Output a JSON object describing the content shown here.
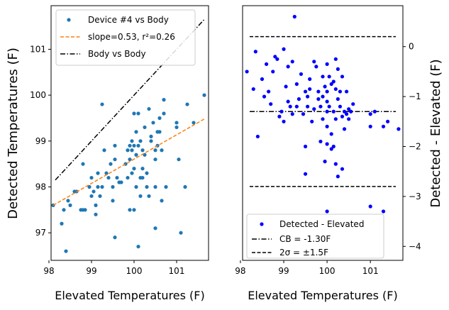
{
  "chart_data": [
    {
      "type": "scatter",
      "xlabel": "Elevated Temperatures (F)",
      "ylabel": "Detected Temperatures (F)",
      "xlim": [
        98.05,
        101.75
      ],
      "ylim": [
        96.4,
        101.95
      ],
      "xticks": [
        "98",
        "99",
        "100",
        "101"
      ],
      "yticks": [
        "97",
        "98",
        "99",
        "100",
        "101"
      ],
      "grid": false,
      "legend_loc": "upper-left",
      "colors": {
        "scatter": "#1f77b4",
        "fit": "#ff7f0e",
        "identity": "#000000"
      },
      "series": [
        {
          "name": "Device #4 vs Body",
          "kind": "points",
          "points": [
            [
              98.1,
              97.6
            ],
            [
              98.3,
              97.2
            ],
            [
              98.35,
              97.5
            ],
            [
              98.4,
              96.6
            ],
            [
              98.45,
              97.7
            ],
            [
              98.5,
              97.6
            ],
            [
              98.6,
              97.9
            ],
            [
              98.65,
              97.9
            ],
            [
              98.75,
              97.5
            ],
            [
              98.8,
              98.5
            ],
            [
              98.8,
              97.5
            ],
            [
              98.85,
              97.5
            ],
            [
              98.95,
              98.0
            ],
            [
              99.0,
              98.2
            ],
            [
              99.0,
              97.8
            ],
            [
              99.05,
              97.9
            ],
            [
              99.1,
              97.6
            ],
            [
              99.1,
              97.4
            ],
            [
              99.15,
              98.3
            ],
            [
              99.15,
              98.0
            ],
            [
              99.2,
              97.8
            ],
            [
              99.25,
              98.0
            ],
            [
              99.25,
              99.8
            ],
            [
              99.3,
              98.8
            ],
            [
              99.35,
              98.3
            ],
            [
              99.4,
              98.2
            ],
            [
              99.45,
              98.5
            ],
            [
              99.5,
              98.0
            ],
            [
              99.5,
              97.7
            ],
            [
              99.55,
              98.9
            ],
            [
              99.55,
              98.6
            ],
            [
              99.55,
              96.9
            ],
            [
              99.6,
              98.2
            ],
            [
              99.65,
              98.1
            ],
            [
              99.7,
              98.1
            ],
            [
              99.8,
              98.5
            ],
            [
              99.85,
              98.8
            ],
            [
              99.85,
              98.2
            ],
            [
              99.9,
              98.9
            ],
            [
              99.9,
              98.6
            ],
            [
              99.9,
              97.5
            ],
            [
              99.95,
              99.0
            ],
            [
              99.95,
              98.8
            ],
            [
              99.95,
              98.3
            ],
            [
              100.0,
              98.9
            ],
            [
              100.0,
              98.4
            ],
            [
              100.0,
              97.5
            ],
            [
              100.0,
              99.6
            ],
            [
              100.05,
              99.2
            ],
            [
              100.05,
              98.7
            ],
            [
              100.05,
              98.0
            ],
            [
              100.1,
              98.9
            ],
            [
              100.1,
              96.7
            ],
            [
              100.1,
              99.6
            ],
            [
              100.15,
              99.0
            ],
            [
              100.15,
              98.2
            ],
            [
              100.15,
              97.8
            ],
            [
              100.2,
              98.8
            ],
            [
              100.2,
              98.4
            ],
            [
              100.2,
              98.2
            ],
            [
              100.25,
              98.7
            ],
            [
              100.25,
              99.3
            ],
            [
              100.3,
              98.3
            ],
            [
              100.3,
              98.0
            ],
            [
              100.35,
              97.8
            ],
            [
              100.35,
              99.7
            ],
            [
              100.4,
              99.1
            ],
            [
              100.4,
              99.0
            ],
            [
              100.45,
              99.4
            ],
            [
              100.5,
              98.8
            ],
            [
              100.5,
              98.6
            ],
            [
              100.5,
              98.0
            ],
            [
              100.5,
              97.1
            ],
            [
              100.55,
              99.2
            ],
            [
              100.55,
              98.9
            ],
            [
              100.6,
              99.5
            ],
            [
              100.6,
              99.2
            ],
            [
              100.65,
              98.8
            ],
            [
              100.65,
              97.7
            ],
            [
              100.7,
              99.6
            ],
            [
              100.7,
              99.9
            ],
            [
              100.75,
              98.0
            ],
            [
              101.0,
              99.3
            ],
            [
              101.0,
              99.4
            ],
            [
              101.05,
              98.6
            ],
            [
              101.1,
              97.0
            ],
            [
              101.2,
              98.0
            ],
            [
              101.25,
              99.8
            ],
            [
              101.4,
              99.4
            ],
            [
              101.65,
              100.0
            ]
          ]
        },
        {
          "name": "slope=0.53, r²=0.26",
          "kind": "dashed-line",
          "points": [
            [
              98.1,
              97.6
            ],
            [
              101.65,
              99.48
            ]
          ]
        },
        {
          "name": "Body vs Body",
          "kind": "dashdot-line",
          "points": [
            [
              98.15,
              98.15
            ],
            [
              101.65,
              101.65
            ]
          ]
        }
      ]
    },
    {
      "type": "scatter",
      "xlabel": "Elevated Temperatures (F)",
      "ylabel": "Detected - Elevated (F)",
      "xlim": [
        98.05,
        101.75
      ],
      "ylim": [
        -4.28,
        0.82
      ],
      "xticks": [
        "98",
        "99",
        "100",
        "101"
      ],
      "yticks": [
        "0",
        "−1",
        "−2",
        "−3",
        "−4"
      ],
      "y_axis_side": "right",
      "grid": false,
      "legend_loc": "lower-left",
      "colors": {
        "points": "#0000ff",
        "lines": "#000000"
      },
      "series": [
        {
          "name": "Detected - Elevated",
          "kind": "points",
          "points": [
            [
              98.15,
              -0.5
            ],
            [
              98.3,
              -0.85
            ],
            [
              98.35,
              -0.1
            ],
            [
              98.4,
              -1.8
            ],
            [
              98.5,
              -0.65
            ],
            [
              98.55,
              -1.0
            ],
            [
              98.6,
              -0.35
            ],
            [
              98.65,
              -0.9
            ],
            [
              98.7,
              -1.15
            ],
            [
              98.75,
              -0.5
            ],
            [
              98.8,
              -0.2
            ],
            [
              98.85,
              -0.25
            ],
            [
              98.9,
              -1.4
            ],
            [
              98.95,
              -1.3
            ],
            [
              99.0,
              -0.05
            ],
            [
              99.0,
              -1.5
            ],
            [
              99.05,
              -0.8
            ],
            [
              99.1,
              -0.4
            ],
            [
              99.1,
              -1.1
            ],
            [
              99.15,
              -1.2
            ],
            [
              99.2,
              -0.3
            ],
            [
              99.2,
              -1.35
            ],
            [
              99.25,
              0.6
            ],
            [
              99.3,
              -0.75
            ],
            [
              99.3,
              -1.2
            ],
            [
              99.35,
              -1.05
            ],
            [
              99.4,
              -0.55
            ],
            [
              99.45,
              -1.35
            ],
            [
              99.5,
              -0.9
            ],
            [
              99.5,
              -2.0
            ],
            [
              99.5,
              -2.55
            ],
            [
              99.55,
              -1.0
            ],
            [
              99.55,
              -1.2
            ],
            [
              99.6,
              -0.85
            ],
            [
              99.6,
              -0.65
            ],
            [
              99.65,
              -1.5
            ],
            [
              99.7,
              -0.3
            ],
            [
              99.7,
              -1.25
            ],
            [
              99.75,
              -0.4
            ],
            [
              99.8,
              -1.05
            ],
            [
              99.8,
              -0.9
            ],
            [
              99.85,
              -1.2
            ],
            [
              99.85,
              -1.9
            ],
            [
              99.9,
              -0.6
            ],
            [
              99.9,
              -1.0
            ],
            [
              99.9,
              -1.45
            ],
            [
              99.95,
              -0.8
            ],
            [
              99.95,
              -2.3
            ],
            [
              100.0,
              -0.35
            ],
            [
              100.0,
              -0.9
            ],
            [
              100.0,
              -1.1
            ],
            [
              100.0,
              -1.3
            ],
            [
              100.0,
              -1.6
            ],
            [
              100.0,
              -1.95
            ],
            [
              100.05,
              -0.6
            ],
            [
              100.05,
              -1.2
            ],
            [
              100.1,
              -0.75
            ],
            [
              100.1,
              -1.75
            ],
            [
              100.1,
              -2.05
            ],
            [
              100.15,
              -0.7
            ],
            [
              100.15,
              -1.3
            ],
            [
              100.15,
              -2.0
            ],
            [
              100.2,
              -0.25
            ],
            [
              100.2,
              -0.85
            ],
            [
              100.2,
              -1.45
            ],
            [
              100.2,
              -2.35
            ],
            [
              100.25,
              -0.45
            ],
            [
              100.25,
              -1.05
            ],
            [
              100.25,
              -2.6
            ],
            [
              100.3,
              -0.9
            ],
            [
              100.3,
              -1.2
            ],
            [
              100.35,
              -0.6
            ],
            [
              100.35,
              -1.4
            ],
            [
              100.35,
              -2.45
            ],
            [
              100.4,
              -1.3
            ],
            [
              100.4,
              -1.65
            ],
            [
              100.45,
              -0.9
            ],
            [
              100.45,
              -1.35
            ],
            [
              100.5,
              -1.25
            ],
            [
              100.5,
              -1.45
            ],
            [
              100.55,
              -1.3
            ],
            [
              100.6,
              -1.15
            ],
            [
              101.0,
              -1.35
            ],
            [
              101.0,
              -1.6
            ],
            [
              101.1,
              -1.3
            ],
            [
              101.3,
              -1.6
            ],
            [
              101.4,
              -1.5
            ],
            [
              101.65,
              -1.65
            ],
            [
              100.0,
              -3.3
            ],
            [
              101.0,
              -3.2
            ],
            [
              101.3,
              -3.3
            ]
          ]
        },
        {
          "name": "CB = -1.30F",
          "kind": "dashdot-hline",
          "y": -1.3
        },
        {
          "name": "2σ = ±1.5F",
          "kind": "dashed-hline",
          "y": [
            0.2,
            -2.8
          ]
        }
      ]
    }
  ]
}
